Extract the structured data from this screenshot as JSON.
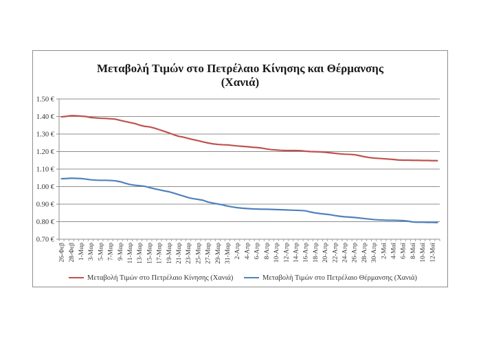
{
  "chart_data": {
    "type": "line",
    "title_lines": [
      "Μεταβολή Τιμών στο Πετρέλαιο Κίνησης και Θέρμανσης",
      "(Χανιά)"
    ],
    "xlabel": "",
    "ylabel": "",
    "ylim": [
      0.7,
      1.5
    ],
    "yticks": [
      "1.50 €",
      "1.40 €",
      "1.30 €",
      "1.20 €",
      "1.10 €",
      "1.00 €",
      "0.90 €",
      "0.80 €",
      "0.70 €"
    ],
    "ytick_values": [
      1.5,
      1.4,
      1.3,
      1.2,
      1.1,
      1.0,
      0.9,
      0.8,
      0.7
    ],
    "grid": "horizontal",
    "legend_position": "bottom",
    "categories": [
      "26-Φεβ",
      "27-Φεβ",
      "28-Φεβ",
      "29-Φεβ",
      "1-Μαρ",
      "2-Μαρ",
      "3-Μαρ",
      "4-Μαρ",
      "5-Μαρ",
      "6-Μαρ",
      "7-Μαρ",
      "8-Μαρ",
      "9-Μαρ",
      "10-Μαρ",
      "11-Μαρ",
      "12-Μαρ",
      "13-Μαρ",
      "14-Μαρ",
      "15-Μαρ",
      "16-Μαρ",
      "17-Μαρ",
      "18-Μαρ",
      "19-Μαρ",
      "20-Μαρ",
      "21-Μαρ",
      "22-Μαρ",
      "23-Μαρ",
      "24-Μαρ",
      "25-Μαρ",
      "26-Μαρ",
      "27-Μαρ",
      "28-Μαρ",
      "29-Μαρ",
      "30-Μαρ",
      "31-Μαρ",
      "1-Απρ",
      "2-Απρ",
      "3-Απρ",
      "4-Απρ",
      "5-Απρ",
      "6-Απρ",
      "7-Απρ",
      "8-Απρ",
      "9-Απρ",
      "10-Απρ",
      "11-Απρ",
      "12-Απρ",
      "13-Απρ",
      "14-Απρ",
      "15-Απρ",
      "16-Απρ",
      "17-Απρ",
      "18-Απρ",
      "19-Απρ",
      "20-Απρ",
      "21-Απρ",
      "22-Απρ",
      "23-Απρ",
      "24-Απρ",
      "25-Απρ",
      "26-Απρ",
      "27-Απρ",
      "28-Απρ",
      "29-Απρ",
      "30-Απρ",
      "1-Μαΐ",
      "2-Μαΐ",
      "3-Μαΐ",
      "4-Μαΐ",
      "5-Μαΐ",
      "6-Μαΐ",
      "7-Μαΐ",
      "8-Μαΐ",
      "9-Μαΐ",
      "10-Μαΐ",
      "11-Μαΐ",
      "12-Μαΐ",
      "13-Μαΐ"
    ],
    "shown_tick_labels": [
      "26-Φεβ",
      "28-Φεβ",
      "1-Μαρ",
      "3-Μαρ",
      "5-Μαρ",
      "7-Μαρ",
      "9-Μαρ",
      "11-Μαρ",
      "13-Μαρ",
      "15-Μαρ",
      "17-Μαρ",
      "19-Μαρ",
      "21-Μαρ",
      "23-Μαρ",
      "25-Μαρ",
      "27-Μαρ",
      "29-Μαρ",
      "31-Μαρ",
      "2-Απρ",
      "4-Απρ",
      "6-Απρ",
      "8-Απρ",
      "10-Απρ",
      "12-Απρ",
      "14-Απρ",
      "16-Απρ",
      "18-Απρ",
      "20-Απρ",
      "22-Απρ",
      "24-Απρ",
      "26-Απρ",
      "28-Απρ",
      "30-Απρ",
      "2-Μαΐ",
      "4-Μαΐ",
      "6-Μαΐ",
      "8-Μαΐ",
      "10-Μαΐ",
      "12-Μαΐ"
    ],
    "series": [
      {
        "name": "Μεταβολή Τιμών στο Πετρέλαιο Κίνησης (Χανιά)",
        "color": "#c0504d",
        "values": [
          1.398,
          1.401,
          1.405,
          1.404,
          1.402,
          1.4,
          1.394,
          1.392,
          1.39,
          1.389,
          1.387,
          1.385,
          1.378,
          1.372,
          1.366,
          1.36,
          1.351,
          1.344,
          1.341,
          1.334,
          1.325,
          1.316,
          1.306,
          1.296,
          1.287,
          1.282,
          1.275,
          1.268,
          1.262,
          1.255,
          1.249,
          1.244,
          1.241,
          1.239,
          1.238,
          1.235,
          1.232,
          1.23,
          1.228,
          1.225,
          1.223,
          1.22,
          1.215,
          1.211,
          1.209,
          1.207,
          1.206,
          1.206,
          1.206,
          1.205,
          1.202,
          1.2,
          1.199,
          1.198,
          1.196,
          1.193,
          1.19,
          1.187,
          1.185,
          1.184,
          1.182,
          1.177,
          1.171,
          1.166,
          1.163,
          1.161,
          1.159,
          1.157,
          1.155,
          1.152,
          1.151,
          1.151,
          1.15,
          1.15,
          1.149,
          1.149,
          1.148,
          1.148
        ]
      },
      {
        "name": "Μεταβολή Τιμών στο Πετρέλαιο Θέρμανσης (Χανιά)",
        "color": "#4f81bd",
        "values": [
          1.045,
          1.046,
          1.048,
          1.047,
          1.046,
          1.043,
          1.039,
          1.037,
          1.036,
          1.036,
          1.035,
          1.033,
          1.028,
          1.02,
          1.012,
          1.008,
          1.005,
          1.002,
          0.995,
          0.988,
          0.982,
          0.976,
          0.971,
          0.963,
          0.954,
          0.946,
          0.937,
          0.931,
          0.927,
          0.922,
          0.912,
          0.906,
          0.901,
          0.896,
          0.889,
          0.884,
          0.88,
          0.877,
          0.875,
          0.873,
          0.872,
          0.871,
          0.871,
          0.87,
          0.869,
          0.868,
          0.867,
          0.866,
          0.865,
          0.864,
          0.862,
          0.855,
          0.85,
          0.846,
          0.843,
          0.84,
          0.835,
          0.831,
          0.828,
          0.826,
          0.824,
          0.821,
          0.818,
          0.815,
          0.812,
          0.81,
          0.809,
          0.808,
          0.808,
          0.807,
          0.806,
          0.803,
          0.798,
          0.797,
          0.797,
          0.796,
          0.796,
          0.795
        ]
      }
    ]
  }
}
